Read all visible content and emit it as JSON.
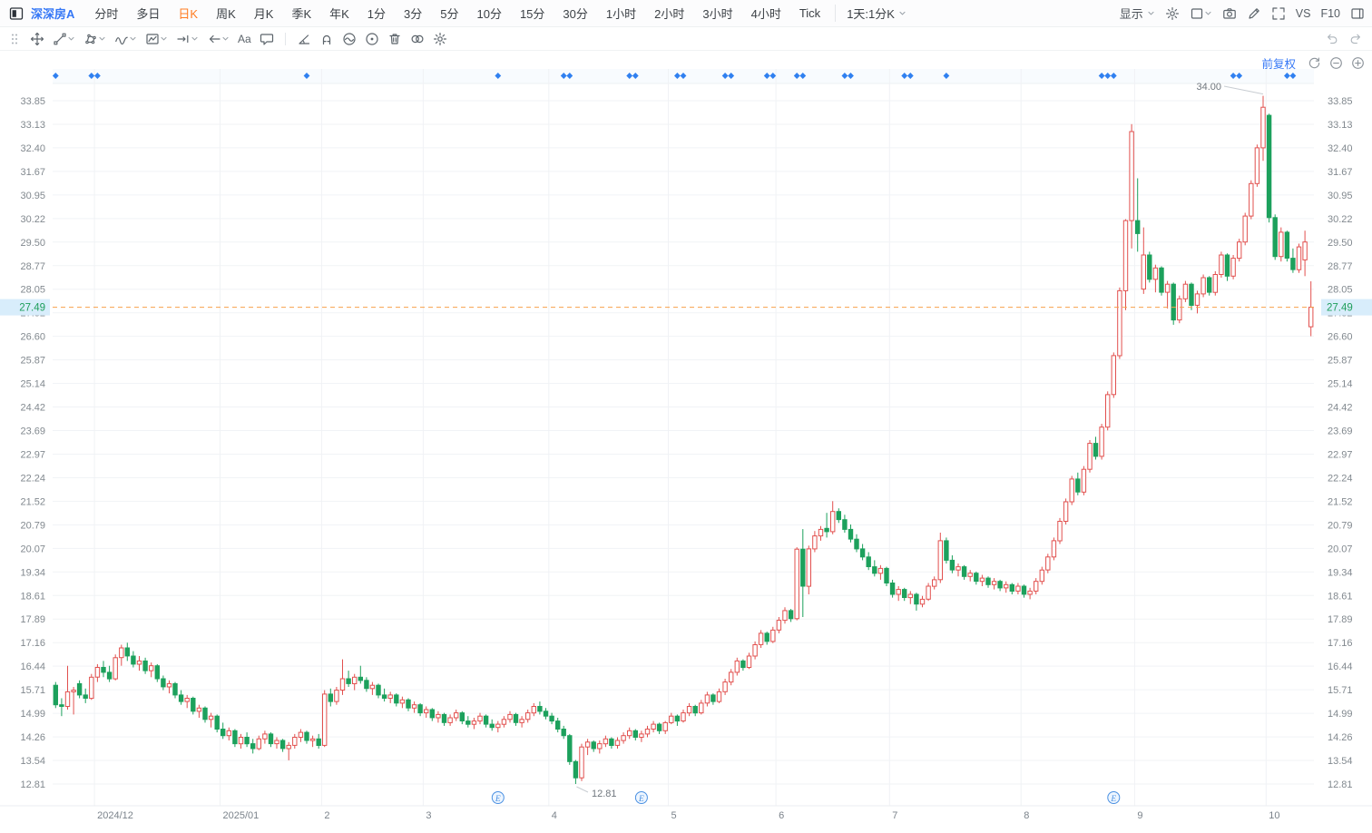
{
  "topbar": {
    "stock_name": "深深房A",
    "tabs": [
      {
        "label": "分时"
      },
      {
        "label": "多日"
      },
      {
        "label": "日K",
        "active": true
      },
      {
        "label": "周K"
      },
      {
        "label": "月K"
      },
      {
        "label": "季K"
      },
      {
        "label": "年K"
      },
      {
        "label": "1分"
      },
      {
        "label": "3分"
      },
      {
        "label": "5分"
      },
      {
        "label": "10分"
      },
      {
        "label": "15分"
      },
      {
        "label": "30分"
      },
      {
        "label": "1小时"
      },
      {
        "label": "2小时"
      },
      {
        "label": "3小时"
      },
      {
        "label": "4小时"
      },
      {
        "label": "Tick"
      }
    ],
    "period_selector": "1天:1分K",
    "display_menu": "显示",
    "right_icons": [
      {
        "name": "chart-settings-gear-icon"
      },
      {
        "name": "layout-grid-icon",
        "chevron": true
      },
      {
        "name": "screenshot-camera-icon"
      },
      {
        "name": "draw-pencil-icon"
      },
      {
        "name": "fullscreen-icon"
      }
    ],
    "vs_label": "VS",
    "f10_label": "F10"
  },
  "toolbar": {
    "tools": [
      {
        "name": "drag-handle"
      },
      {
        "name": "crosshair-move"
      },
      {
        "name": "trend-line",
        "chevron": true
      },
      {
        "name": "shape-tool",
        "chevron": true
      },
      {
        "name": "wave-tool",
        "chevron": true
      },
      {
        "name": "pattern-tool",
        "chevron": true
      },
      {
        "name": "price-line-tool",
        "chevron": true
      },
      {
        "name": "arrow-tool",
        "chevron": true
      },
      {
        "name": "text-tool",
        "label": "Aa"
      },
      {
        "name": "comment-tool"
      },
      {
        "divider": true
      },
      {
        "name": "angle-tool"
      },
      {
        "name": "magnet-tool"
      },
      {
        "name": "hide-drawings-tool"
      },
      {
        "name": "target-tool"
      },
      {
        "name": "delete-tool"
      },
      {
        "name": "link-tool"
      },
      {
        "name": "drawing-settings-gear"
      }
    ],
    "right_tools": [
      {
        "name": "undo"
      },
      {
        "name": "redo"
      }
    ]
  },
  "chart_header": {
    "adjust_label": "前复权"
  },
  "chart_data": {
    "type": "candlestick",
    "symbol": "深深房A",
    "interval": "日K",
    "current_price": "27.49",
    "high_annotation": "34.00",
    "low_annotation": "12.81",
    "earnings_glyph": "E",
    "y_ticks": [
      "33.85",
      "33.13",
      "32.40",
      "31.67",
      "30.95",
      "30.22",
      "29.50",
      "28.77",
      "28.05",
      "27.32",
      "26.60",
      "25.87",
      "25.14",
      "24.42",
      "23.69",
      "22.97",
      "22.24",
      "21.52",
      "20.79",
      "20.07",
      "19.34",
      "18.61",
      "17.89",
      "17.16",
      "16.44",
      "15.71",
      "14.99",
      "14.26",
      "13.54",
      "12.81"
    ],
    "month_labels": [
      "2024/12",
      "2025/01",
      "2",
      "3",
      "4",
      "5",
      "6",
      "7",
      "8",
      "9",
      "10"
    ],
    "month_start_indices": [
      7,
      28,
      45,
      62,
      83,
      103,
      121,
      140,
      162,
      181,
      203
    ],
    "event_diamond_indices": [
      0,
      6,
      7,
      42,
      74,
      85,
      86,
      96,
      97,
      104,
      105,
      112,
      113,
      119,
      120,
      124,
      125,
      132,
      133,
      142,
      143,
      149,
      175,
      176,
      177,
      197,
      198,
      206,
      207
    ],
    "earnings_marker_indices": [
      74,
      98,
      177
    ],
    "high_annotation_index": 202,
    "low_annotation_index": 87,
    "colors": {
      "up": "#e2504e",
      "down": "#1ca15c",
      "price_line": "#f7a049",
      "price_tag_bg": "#d8edfb",
      "price_tag_text": "#1f9e5c",
      "event_diamond": "#3080f0",
      "earnings_marker": "#4a90e2",
      "grid": "#f1f3f6",
      "axis_text": "#82898f",
      "annotation_text": "#70777e"
    },
    "ohlc_format": [
      "open",
      "high",
      "low",
      "close"
    ],
    "candles": [
      [
        15.85,
        15.95,
        15.15,
        15.25
      ],
      [
        15.25,
        15.45,
        14.9,
        15.2
      ],
      [
        15.2,
        16.45,
        15.1,
        15.65
      ],
      [
        15.65,
        15.8,
        14.95,
        15.7
      ],
      [
        15.9,
        16.0,
        15.45,
        15.55
      ],
      [
        15.55,
        15.75,
        15.3,
        15.45
      ],
      [
        15.45,
        16.2,
        15.4,
        16.1
      ],
      [
        16.1,
        16.5,
        15.95,
        16.4
      ],
      [
        16.4,
        16.6,
        16.1,
        16.25
      ],
      [
        16.25,
        16.45,
        15.95,
        16.05
      ],
      [
        16.05,
        16.8,
        16.0,
        16.7
      ],
      [
        16.7,
        17.1,
        16.45,
        17.0
      ],
      [
        17.0,
        17.16,
        16.6,
        16.75
      ],
      [
        16.75,
        16.9,
        16.4,
        16.5
      ],
      [
        16.5,
        16.75,
        16.3,
        16.6
      ],
      [
        16.6,
        16.7,
        16.2,
        16.3
      ],
      [
        16.3,
        16.55,
        16.1,
        16.45
      ],
      [
        16.45,
        16.5,
        15.95,
        16.05
      ],
      [
        16.05,
        16.15,
        15.7,
        15.8
      ],
      [
        15.8,
        16.0,
        15.6,
        15.9
      ],
      [
        15.9,
        15.95,
        15.45,
        15.55
      ],
      [
        15.55,
        15.7,
        15.25,
        15.35
      ],
      [
        15.35,
        15.55,
        15.15,
        15.45
      ],
      [
        15.45,
        15.5,
        14.95,
        15.05
      ],
      [
        15.05,
        15.25,
        14.85,
        15.15
      ],
      [
        15.15,
        15.2,
        14.7,
        14.8
      ],
      [
        14.8,
        15.0,
        14.55,
        14.9
      ],
      [
        14.9,
        14.95,
        14.4,
        14.5
      ],
      [
        14.5,
        14.7,
        14.2,
        14.3
      ],
      [
        14.3,
        14.55,
        14.15,
        14.45
      ],
      [
        14.45,
        14.5,
        13.95,
        14.05
      ],
      [
        14.05,
        14.35,
        13.9,
        14.25
      ],
      [
        14.25,
        14.4,
        13.95,
        14.05
      ],
      [
        14.05,
        14.2,
        13.75,
        13.9
      ],
      [
        13.9,
        14.3,
        13.85,
        14.2
      ],
      [
        14.2,
        14.45,
        14.05,
        14.35
      ],
      [
        14.35,
        14.4,
        13.95,
        14.05
      ],
      [
        14.05,
        14.25,
        13.9,
        14.15
      ],
      [
        14.15,
        14.2,
        13.8,
        13.9
      ],
      [
        13.9,
        14.1,
        13.54,
        14.0
      ],
      [
        14.0,
        14.35,
        13.9,
        14.25
      ],
      [
        14.25,
        14.5,
        14.1,
        14.4
      ],
      [
        14.4,
        14.45,
        14.05,
        14.15
      ],
      [
        14.15,
        14.3,
        13.95,
        14.2
      ],
      [
        14.2,
        14.35,
        13.9,
        14.0
      ],
      [
        14.0,
        15.7,
        13.95,
        15.58
      ],
      [
        15.58,
        15.75,
        15.2,
        15.35
      ],
      [
        15.35,
        15.8,
        15.25,
        15.7
      ],
      [
        15.7,
        16.65,
        15.55,
        16.05
      ],
      [
        16.05,
        16.3,
        15.8,
        15.9
      ],
      [
        15.9,
        16.2,
        15.7,
        16.1
      ],
      [
        16.1,
        16.45,
        15.9,
        16.0
      ],
      [
        16.0,
        16.1,
        15.65,
        15.75
      ],
      [
        15.75,
        15.95,
        15.55,
        15.85
      ],
      [
        15.85,
        15.9,
        15.45,
        15.55
      ],
      [
        15.55,
        15.75,
        15.35,
        15.45
      ],
      [
        15.45,
        15.65,
        15.3,
        15.55
      ],
      [
        15.55,
        15.6,
        15.2,
        15.3
      ],
      [
        15.3,
        15.5,
        15.15,
        15.4
      ],
      [
        15.4,
        15.45,
        15.05,
        15.15
      ],
      [
        15.15,
        15.35,
        15.0,
        15.25
      ],
      [
        15.25,
        15.3,
        14.9,
        15.0
      ],
      [
        15.0,
        15.2,
        14.85,
        15.1
      ],
      [
        15.1,
        15.15,
        14.75,
        14.85
      ],
      [
        14.85,
        15.05,
        14.7,
        14.95
      ],
      [
        14.95,
        15.0,
        14.6,
        14.7
      ],
      [
        14.7,
        14.95,
        14.6,
        14.85
      ],
      [
        14.85,
        15.1,
        14.75,
        15.0
      ],
      [
        15.0,
        15.05,
        14.65,
        14.75
      ],
      [
        14.75,
        14.9,
        14.55,
        14.65
      ],
      [
        14.65,
        14.85,
        14.5,
        14.75
      ],
      [
        14.75,
        15.0,
        14.65,
        14.9
      ],
      [
        14.9,
        14.95,
        14.55,
        14.65
      ],
      [
        14.65,
        14.8,
        14.45,
        14.55
      ],
      [
        14.55,
        14.75,
        14.4,
        14.65
      ],
      [
        14.65,
        14.9,
        14.55,
        14.8
      ],
      [
        14.8,
        15.05,
        14.7,
        14.95
      ],
      [
        14.95,
        15.0,
        14.6,
        14.7
      ],
      [
        14.7,
        14.9,
        14.55,
        14.8
      ],
      [
        14.8,
        15.1,
        14.7,
        15.0
      ],
      [
        15.0,
        15.3,
        14.9,
        15.2
      ],
      [
        15.2,
        15.35,
        14.95,
        15.05
      ],
      [
        15.05,
        15.15,
        14.8,
        14.9
      ],
      [
        14.9,
        15.0,
        14.65,
        14.75
      ],
      [
        14.75,
        14.85,
        14.4,
        14.5
      ],
      [
        14.5,
        14.6,
        14.2,
        14.3
      ],
      [
        14.3,
        14.35,
        13.4,
        13.5
      ],
      [
        13.5,
        13.55,
        12.81,
        13.0
      ],
      [
        13.0,
        14.05,
        12.9,
        13.95
      ],
      [
        13.95,
        14.2,
        13.7,
        14.1
      ],
      [
        14.1,
        14.15,
        13.8,
        13.9
      ],
      [
        13.9,
        14.15,
        13.75,
        14.05
      ],
      [
        14.05,
        14.3,
        13.95,
        14.2
      ],
      [
        14.2,
        14.25,
        13.9,
        14.0
      ],
      [
        14.0,
        14.25,
        13.9,
        14.15
      ],
      [
        14.15,
        14.4,
        14.05,
        14.3
      ],
      [
        14.3,
        14.55,
        14.2,
        14.45
      ],
      [
        14.45,
        14.5,
        14.15,
        14.25
      ],
      [
        14.25,
        14.45,
        14.1,
        14.35
      ],
      [
        14.35,
        14.6,
        14.25,
        14.5
      ],
      [
        14.5,
        14.75,
        14.4,
        14.65
      ],
      [
        14.65,
        14.7,
        14.35,
        14.45
      ],
      [
        14.45,
        14.75,
        14.35,
        14.7
      ],
      [
        14.7,
        15.0,
        14.65,
        14.9
      ],
      [
        14.9,
        14.95,
        14.6,
        14.75
      ],
      [
        14.75,
        15.1,
        14.7,
        15.0
      ],
      [
        15.0,
        15.3,
        14.9,
        15.2
      ],
      [
        15.2,
        15.25,
        14.9,
        15.0
      ],
      [
        15.0,
        15.4,
        14.95,
        15.3
      ],
      [
        15.3,
        15.65,
        15.2,
        15.55
      ],
      [
        15.55,
        15.6,
        15.25,
        15.35
      ],
      [
        15.35,
        15.75,
        15.3,
        15.65
      ],
      [
        15.65,
        16.05,
        15.55,
        15.95
      ],
      [
        15.95,
        16.35,
        15.85,
        16.25
      ],
      [
        16.25,
        16.7,
        16.15,
        16.6
      ],
      [
        16.6,
        16.65,
        16.3,
        16.4
      ],
      [
        16.4,
        16.85,
        16.35,
        16.75
      ],
      [
        16.75,
        17.2,
        16.65,
        17.1
      ],
      [
        17.1,
        17.55,
        17.0,
        17.45
      ],
      [
        17.45,
        17.5,
        17.1,
        17.2
      ],
      [
        17.2,
        17.65,
        17.15,
        17.55
      ],
      [
        17.55,
        17.95,
        17.45,
        17.85
      ],
      [
        17.85,
        18.25,
        17.75,
        18.15
      ],
      [
        18.15,
        18.2,
        17.8,
        17.9
      ],
      [
        17.9,
        20.1,
        17.85,
        20.04
      ],
      [
        20.04,
        20.66,
        17.95,
        18.9
      ],
      [
        18.9,
        20.15,
        18.65,
        20.05
      ],
      [
        20.05,
        20.6,
        19.95,
        20.45
      ],
      [
        20.45,
        20.75,
        20.3,
        20.65
      ],
      [
        20.68,
        21.16,
        20.4,
        20.58
      ],
      [
        20.58,
        21.52,
        20.5,
        21.2
      ],
      [
        21.2,
        21.3,
        20.85,
        20.95
      ],
      [
        20.95,
        21.1,
        20.55,
        20.65
      ],
      [
        20.65,
        20.8,
        20.25,
        20.35
      ],
      [
        20.35,
        20.5,
        19.95,
        20.05
      ],
      [
        20.05,
        20.2,
        19.7,
        19.8
      ],
      [
        19.8,
        19.95,
        19.4,
        19.5
      ],
      [
        19.5,
        19.7,
        19.2,
        19.3
      ],
      [
        19.3,
        19.55,
        19.1,
        19.45
      ],
      [
        19.45,
        19.5,
        18.9,
        19.0
      ],
      [
        19.0,
        19.1,
        18.55,
        18.65
      ],
      [
        18.65,
        18.9,
        18.45,
        18.8
      ],
      [
        18.8,
        18.85,
        18.45,
        18.55
      ],
      [
        18.55,
        18.75,
        18.35,
        18.65
      ],
      [
        18.65,
        18.7,
        18.15,
        18.35
      ],
      [
        18.35,
        18.6,
        18.25,
        18.5
      ],
      [
        18.5,
        19.0,
        18.45,
        18.9
      ],
      [
        18.9,
        19.2,
        18.8,
        19.1
      ],
      [
        19.1,
        20.55,
        19.0,
        20.3
      ],
      [
        20.3,
        20.4,
        19.6,
        19.7
      ],
      [
        19.7,
        19.85,
        19.3,
        19.4
      ],
      [
        19.4,
        19.6,
        19.2,
        19.5
      ],
      [
        19.5,
        19.55,
        19.1,
        19.2
      ],
      [
        19.2,
        19.4,
        19.05,
        19.3
      ],
      [
        19.3,
        19.35,
        18.95,
        19.05
      ],
      [
        19.05,
        19.25,
        18.9,
        19.15
      ],
      [
        19.15,
        19.2,
        18.85,
        18.95
      ],
      [
        18.95,
        19.15,
        18.8,
        19.05
      ],
      [
        19.05,
        19.1,
        18.75,
        18.85
      ],
      [
        18.85,
        19.05,
        18.7,
        18.95
      ],
      [
        18.95,
        19.0,
        18.65,
        18.75
      ],
      [
        18.75,
        19.0,
        18.65,
        18.9
      ],
      [
        18.9,
        18.95,
        18.55,
        18.65
      ],
      [
        18.65,
        18.85,
        18.5,
        18.75
      ],
      [
        18.75,
        19.15,
        18.65,
        19.05
      ],
      [
        19.05,
        19.5,
        18.95,
        19.4
      ],
      [
        19.4,
        19.9,
        19.3,
        19.8
      ],
      [
        19.8,
        20.4,
        19.7,
        20.3
      ],
      [
        20.3,
        21.0,
        20.2,
        20.9
      ],
      [
        20.9,
        21.6,
        20.8,
        21.5
      ],
      [
        21.5,
        22.3,
        21.4,
        22.2
      ],
      [
        22.2,
        22.4,
        21.7,
        21.8
      ],
      [
        21.8,
        22.6,
        21.7,
        22.5
      ],
      [
        22.5,
        23.4,
        22.4,
        23.3
      ],
      [
        23.3,
        23.5,
        22.8,
        22.9
      ],
      [
        22.9,
        23.9,
        22.8,
        23.8
      ],
      [
        23.8,
        24.9,
        23.7,
        24.8
      ],
      [
        24.8,
        26.1,
        24.7,
        26.0
      ],
      [
        26.0,
        28.1,
        25.9,
        28.0
      ],
      [
        28.0,
        30.2,
        27.4,
        30.16
      ],
      [
        30.16,
        33.13,
        29.3,
        32.9
      ],
      [
        30.16,
        31.46,
        29.2,
        29.76
      ],
      [
        28.05,
        29.95,
        27.9,
        29.1
      ],
      [
        29.1,
        29.2,
        28.25,
        28.35
      ],
      [
        28.35,
        28.8,
        27.95,
        28.7
      ],
      [
        28.7,
        28.75,
        27.85,
        27.95
      ],
      [
        27.95,
        28.3,
        27.45,
        28.2
      ],
      [
        28.2,
        28.25,
        26.95,
        27.1
      ],
      [
        27.1,
        27.85,
        27.0,
        27.75
      ],
      [
        27.75,
        28.3,
        27.65,
        28.2
      ],
      [
        28.2,
        28.25,
        27.4,
        27.55
      ],
      [
        27.55,
        28.0,
        27.3,
        27.9
      ],
      [
        27.9,
        28.5,
        27.8,
        28.4
      ],
      [
        28.4,
        28.45,
        27.85,
        27.95
      ],
      [
        27.95,
        28.6,
        27.85,
        28.5
      ],
      [
        28.5,
        29.2,
        28.4,
        29.1
      ],
      [
        29.1,
        29.15,
        28.3,
        28.45
      ],
      [
        28.45,
        29.1,
        28.35,
        29.0
      ],
      [
        29.0,
        29.6,
        28.9,
        29.5
      ],
      [
        29.5,
        30.4,
        29.4,
        30.3
      ],
      [
        30.3,
        31.4,
        30.2,
        31.3
      ],
      [
        31.3,
        32.5,
        31.2,
        32.4
      ],
      [
        32.4,
        34.0,
        32.0,
        33.65
      ],
      [
        33.4,
        33.45,
        30.1,
        30.25
      ],
      [
        30.25,
        30.35,
        28.95,
        29.05
      ],
      [
        29.05,
        29.95,
        28.9,
        29.8
      ],
      [
        29.8,
        29.85,
        28.9,
        29.0
      ],
      [
        29.0,
        29.3,
        28.55,
        28.65
      ],
      [
        28.65,
        29.45,
        28.55,
        29.35
      ],
      [
        28.95,
        29.85,
        28.45,
        29.5
      ],
      [
        26.89,
        28.29,
        26.6,
        27.49
      ]
    ]
  }
}
